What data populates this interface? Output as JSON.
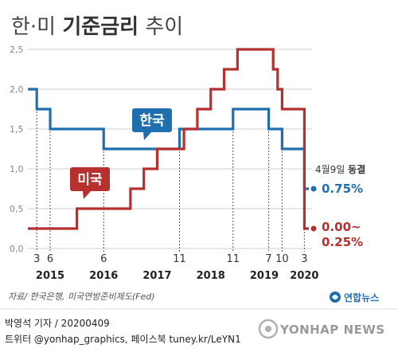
{
  "header": {
    "title_part1": "한·미 ",
    "title_part2": "기준금리",
    "title_part3": " 추이"
  },
  "chart_data": {
    "type": "line",
    "title": "한·미 기준금리 추이",
    "ylim": [
      0,
      2.5
    ],
    "yticks": [
      "0,0",
      "0,5",
      "1,0",
      "1,5",
      "2,0",
      "2,5"
    ],
    "x_month_labels": [
      {
        "label": "3",
        "date": "2015-03"
      },
      {
        "label": "6",
        "date": "2015-06"
      },
      {
        "label": "6",
        "date": "2016-06"
      },
      {
        "label": "11",
        "date": "2017-11"
      },
      {
        "label": "11",
        "date": "2018-11"
      },
      {
        "label": "7",
        "date": "2019-07"
      },
      {
        "label": "10",
        "date": "2019-10"
      },
      {
        "label": "3",
        "date": "2020-03"
      }
    ],
    "x_year_labels": [
      {
        "label": "2015",
        "date": "2015-06"
      },
      {
        "label": "2016",
        "date": "2016-06"
      },
      {
        "label": "2017",
        "date": "2017-06"
      },
      {
        "label": "2018",
        "date": "2018-06"
      },
      {
        "label": "2019",
        "date": "2019-06"
      },
      {
        "label": "2020",
        "date": "2020-03"
      }
    ],
    "series": [
      {
        "name": "한국",
        "color": "#1f6fae",
        "steps": [
          {
            "date": "2015-01",
            "value": 2.0
          },
          {
            "date": "2015-03",
            "value": 1.75
          },
          {
            "date": "2015-06",
            "value": 1.5
          },
          {
            "date": "2016-06",
            "value": 1.25
          },
          {
            "date": "2017-11",
            "value": 1.5
          },
          {
            "date": "2018-11",
            "value": 1.75
          },
          {
            "date": "2019-07",
            "value": 1.5
          },
          {
            "date": "2019-10",
            "value": 1.25
          },
          {
            "date": "2020-03",
            "value": 0.75
          },
          {
            "date": "2020-04",
            "value": 0.75
          }
        ]
      },
      {
        "name": "미국",
        "color": "#b5302f",
        "steps": [
          {
            "date": "2015-01",
            "value": 0.25
          },
          {
            "date": "2015-12",
            "value": 0.5
          },
          {
            "date": "2016-12",
            "value": 0.75
          },
          {
            "date": "2017-03",
            "value": 1.0
          },
          {
            "date": "2017-06",
            "value": 1.25
          },
          {
            "date": "2017-12",
            "value": 1.5
          },
          {
            "date": "2018-03",
            "value": 1.75
          },
          {
            "date": "2018-06",
            "value": 2.0
          },
          {
            "date": "2018-09",
            "value": 2.25
          },
          {
            "date": "2018-12",
            "value": 2.5
          },
          {
            "date": "2019-08",
            "value": 2.25
          },
          {
            "date": "2019-09",
            "value": 2.0
          },
          {
            "date": "2019-10",
            "value": 1.75
          },
          {
            "date": "2020-03",
            "value": 0.25
          },
          {
            "date": "2020-04",
            "value": 0.25
          }
        ]
      }
    ],
    "callouts": {
      "korea": "한국",
      "usa": "미국"
    },
    "annotation": {
      "date_text": "4월9일 ",
      "status_text": "동결",
      "korea_value": "0.75%",
      "usa_value_line1": "0.00~",
      "usa_value_line2": "0.25%"
    }
  },
  "footer": {
    "source": "자료/ 한국은행, 미국연방준비제도(Fed)",
    "logo": "연합뉴스",
    "credit_line1": "박영석 기자 / 20200409",
    "credit_line2": "트위터 @yonhap_graphics, 페이스북 tuney.kr/LeYN1",
    "watermark": "YONHAP NEWS"
  },
  "colors": {
    "korea": "#1f6fae",
    "usa": "#b5302f"
  }
}
